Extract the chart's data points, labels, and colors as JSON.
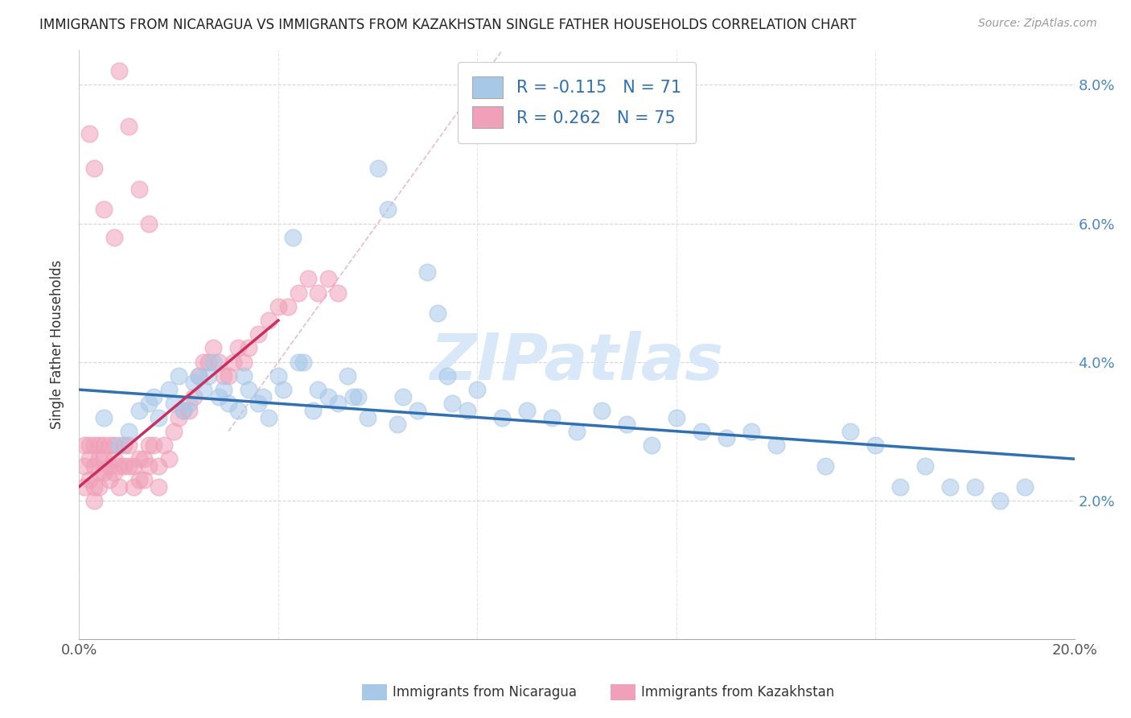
{
  "title": "IMMIGRANTS FROM NICARAGUA VS IMMIGRANTS FROM KAZAKHSTAN SINGLE FATHER HOUSEHOLDS CORRELATION CHART",
  "source": "Source: ZipAtlas.com",
  "ylabel": "Single Father Households",
  "legend_blue_R": "-0.115",
  "legend_blue_N": "71",
  "legend_pink_R": "0.262",
  "legend_pink_N": "75",
  "label_blue": "Immigrants from Nicaragua",
  "label_pink": "Immigrants from Kazakhstan",
  "xlim": [
    0.0,
    0.2
  ],
  "ylim": [
    0.0,
    0.085
  ],
  "yticks": [
    0.02,
    0.04,
    0.06,
    0.08
  ],
  "ytick_labels": [
    "2.0%",
    "4.0%",
    "6.0%",
    "8.0%"
  ],
  "xticks": [
    0.0,
    0.04,
    0.08,
    0.12,
    0.16,
    0.2
  ],
  "color_blue": "#a8c8e8",
  "color_pink": "#f0a0b8",
  "color_blue_line": "#3070b0",
  "color_pink_line": "#c83060",
  "color_diag": "#e0a0b0",
  "watermark_color": "#d8e8f8",
  "background": "#ffffff",
  "grid_color": "#cccccc",
  "blue_line_x": [
    0.0,
    0.2
  ],
  "blue_line_y": [
    0.036,
    0.026
  ],
  "pink_line_x": [
    0.0,
    0.04
  ],
  "pink_line_y": [
    0.022,
    0.046
  ],
  "diag_line_x": [
    0.03,
    0.085
  ],
  "diag_line_y": [
    0.03,
    0.085
  ],
  "blue_x": [
    0.005,
    0.008,
    0.01,
    0.012,
    0.014,
    0.015,
    0.016,
    0.018,
    0.019,
    0.02,
    0.021,
    0.022,
    0.023,
    0.025,
    0.026,
    0.027,
    0.028,
    0.029,
    0.03,
    0.032,
    0.033,
    0.034,
    0.036,
    0.037,
    0.038,
    0.04,
    0.041,
    0.043,
    0.045,
    0.047,
    0.048,
    0.05,
    0.052,
    0.054,
    0.056,
    0.058,
    0.06,
    0.062,
    0.065,
    0.068,
    0.07,
    0.072,
    0.075,
    0.078,
    0.08,
    0.085,
    0.09,
    0.095,
    0.1,
    0.105,
    0.11,
    0.115,
    0.12,
    0.125,
    0.13,
    0.135,
    0.14,
    0.15,
    0.155,
    0.16,
    0.165,
    0.17,
    0.175,
    0.18,
    0.185,
    0.19,
    0.024,
    0.044,
    0.055,
    0.064,
    0.074
  ],
  "blue_y": [
    0.032,
    0.028,
    0.03,
    0.033,
    0.034,
    0.035,
    0.032,
    0.036,
    0.034,
    0.038,
    0.033,
    0.034,
    0.037,
    0.036,
    0.038,
    0.04,
    0.035,
    0.036,
    0.034,
    0.033,
    0.038,
    0.036,
    0.034,
    0.035,
    0.032,
    0.038,
    0.036,
    0.058,
    0.04,
    0.033,
    0.036,
    0.035,
    0.034,
    0.038,
    0.035,
    0.032,
    0.068,
    0.062,
    0.035,
    0.033,
    0.053,
    0.047,
    0.034,
    0.033,
    0.036,
    0.032,
    0.033,
    0.032,
    0.03,
    0.033,
    0.031,
    0.028,
    0.032,
    0.03,
    0.029,
    0.03,
    0.028,
    0.025,
    0.03,
    0.028,
    0.022,
    0.025,
    0.022,
    0.022,
    0.02,
    0.022,
    0.038,
    0.04,
    0.035,
    0.031,
    0.038
  ],
  "pink_x": [
    0.001,
    0.001,
    0.001,
    0.002,
    0.002,
    0.002,
    0.003,
    0.003,
    0.003,
    0.003,
    0.004,
    0.004,
    0.004,
    0.004,
    0.005,
    0.005,
    0.005,
    0.006,
    0.006,
    0.006,
    0.007,
    0.007,
    0.007,
    0.008,
    0.008,
    0.009,
    0.009,
    0.01,
    0.01,
    0.011,
    0.011,
    0.012,
    0.012,
    0.013,
    0.013,
    0.014,
    0.014,
    0.015,
    0.016,
    0.016,
    0.017,
    0.018,
    0.019,
    0.02,
    0.021,
    0.022,
    0.023,
    0.024,
    0.025,
    0.026,
    0.027,
    0.028,
    0.029,
    0.03,
    0.031,
    0.032,
    0.033,
    0.034,
    0.036,
    0.038,
    0.04,
    0.042,
    0.044,
    0.046,
    0.048,
    0.05,
    0.052,
    0.008,
    0.01,
    0.012,
    0.014,
    0.002,
    0.003,
    0.005,
    0.007
  ],
  "pink_y": [
    0.028,
    0.025,
    0.022,
    0.028,
    0.026,
    0.023,
    0.028,
    0.025,
    0.022,
    0.02,
    0.028,
    0.026,
    0.024,
    0.022,
    0.028,
    0.026,
    0.024,
    0.028,
    0.025,
    0.023,
    0.028,
    0.026,
    0.024,
    0.025,
    0.022,
    0.028,
    0.025,
    0.028,
    0.025,
    0.025,
    0.022,
    0.026,
    0.023,
    0.026,
    0.023,
    0.028,
    0.025,
    0.028,
    0.025,
    0.022,
    0.028,
    0.026,
    0.03,
    0.032,
    0.033,
    0.033,
    0.035,
    0.038,
    0.04,
    0.04,
    0.042,
    0.04,
    0.038,
    0.038,
    0.04,
    0.042,
    0.04,
    0.042,
    0.044,
    0.046,
    0.048,
    0.048,
    0.05,
    0.052,
    0.05,
    0.052,
    0.05,
    0.082,
    0.074,
    0.065,
    0.06,
    0.073,
    0.068,
    0.062,
    0.058
  ]
}
